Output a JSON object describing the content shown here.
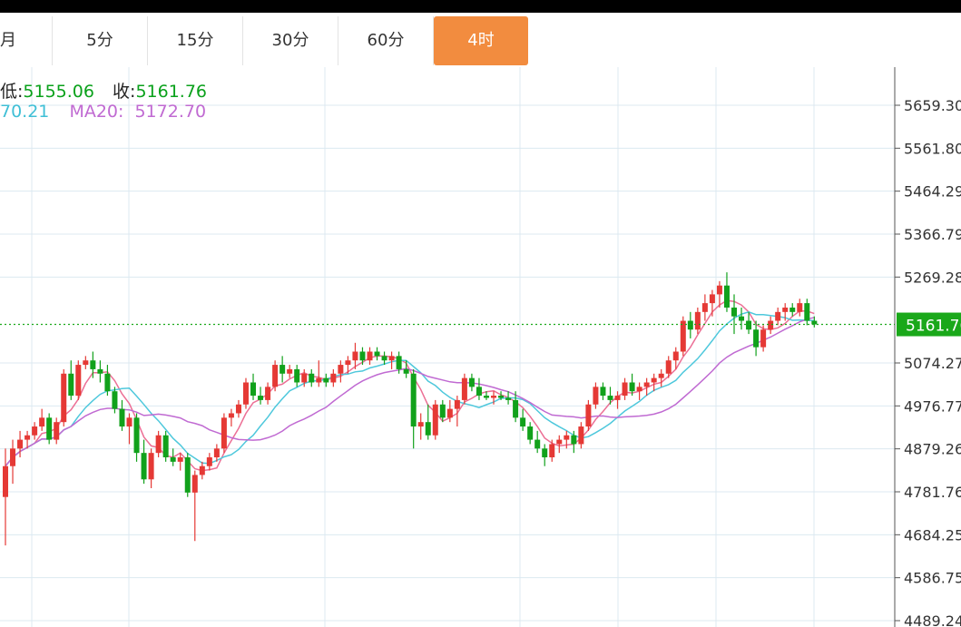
{
  "tabs": [
    {
      "label": "月"
    },
    {
      "label": "5分"
    },
    {
      "label": "15分"
    },
    {
      "label": "30分"
    },
    {
      "label": "60分"
    },
    {
      "label": "4时"
    }
  ],
  "active_tab": "4时",
  "info": {
    "low_label": "低:",
    "low_value": "5155.06",
    "close_label": "收:",
    "close_value": "5161.76",
    "ma10_value": "70.21",
    "ma20_label": "MA20:",
    "ma20_value": "5172.70"
  },
  "colors": {
    "up": "#e53935",
    "down": "#11a11b",
    "ma10": "#ec6f95",
    "ma_cyan": "#4ec8dc",
    "ma20": "#c06ad2",
    "price_line": "#1aa81a",
    "grid": "#dce9f1",
    "accent": "#f28c3f"
  },
  "chart_data": {
    "type": "candlestick",
    "y_ticks": [
      "5659.30",
      "5561.80",
      "5464.29",
      "5366.79",
      "5269.28",
      "5074.27",
      "4976.77",
      "4879.26",
      "4781.76",
      "4684.25",
      "4586.75",
      "4489.24"
    ],
    "ylim": [
      4440,
      5740
    ],
    "last_price": "5161.76",
    "candles": [
      [
        4770,
        4880,
        4660,
        4840
      ],
      [
        4840,
        4900,
        4800,
        4880
      ],
      [
        4880,
        4920,
        4860,
        4900
      ],
      [
        4900,
        4920,
        4880,
        4910
      ],
      [
        4910,
        4940,
        4900,
        4930
      ],
      [
        4930,
        4970,
        4920,
        4950
      ],
      [
        4950,
        4960,
        4890,
        4900
      ],
      [
        4900,
        4950,
        4890,
        4940
      ],
      [
        4940,
        5060,
        4930,
        5050
      ],
      [
        5050,
        5080,
        4990,
        5000
      ],
      [
        5000,
        5080,
        4990,
        5070
      ],
      [
        5070,
        5090,
        5060,
        5080
      ],
      [
        5080,
        5100,
        5040,
        5060
      ],
      [
        5060,
        5080,
        5030,
        5050
      ],
      [
        5050,
        5070,
        5000,
        5010
      ],
      [
        5010,
        5020,
        4960,
        4970
      ],
      [
        4970,
        4990,
        4920,
        4930
      ],
      [
        4930,
        4960,
        4890,
        4950
      ],
      [
        4950,
        4960,
        4850,
        4870
      ],
      [
        4870,
        4900,
        4800,
        4810
      ],
      [
        4810,
        4880,
        4790,
        4870
      ],
      [
        4870,
        4920,
        4860,
        4910
      ],
      [
        4910,
        4920,
        4850,
        4860
      ],
      [
        4860,
        4880,
        4840,
        4850
      ],
      [
        4850,
        4870,
        4830,
        4860
      ],
      [
        4860,
        4870,
        4770,
        4780
      ],
      [
        4780,
        4830,
        4670,
        4820
      ],
      [
        4820,
        4850,
        4810,
        4840
      ],
      [
        4840,
        4870,
        4830,
        4860
      ],
      [
        4860,
        4890,
        4850,
        4880
      ],
      [
        4880,
        4960,
        4870,
        4950
      ],
      [
        4950,
        4970,
        4930,
        4960
      ],
      [
        4960,
        4990,
        4950,
        4980
      ],
      [
        4980,
        5040,
        4970,
        5030
      ],
      [
        5030,
        5050,
        4990,
        5000
      ],
      [
        5000,
        5020,
        4980,
        4990
      ],
      [
        4990,
        5030,
        4980,
        5020
      ],
      [
        5020,
        5080,
        5010,
        5070
      ],
      [
        5070,
        5090,
        5030,
        5050
      ],
      [
        5050,
        5070,
        5040,
        5060
      ],
      [
        5060,
        5070,
        5020,
        5030
      ],
      [
        5030,
        5060,
        5020,
        5050
      ],
      [
        5050,
        5060,
        5020,
        5030
      ],
      [
        5030,
        5080,
        5020,
        5040
      ],
      [
        5040,
        5050,
        5020,
        5030
      ],
      [
        5030,
        5060,
        5020,
        5050
      ],
      [
        5050,
        5080,
        5030,
        5070
      ],
      [
        5070,
        5090,
        5050,
        5080
      ],
      [
        5080,
        5120,
        5060,
        5100
      ],
      [
        5100,
        5110,
        5070,
        5080
      ],
      [
        5080,
        5110,
        5070,
        5100
      ],
      [
        5100,
        5110,
        5080,
        5090
      ],
      [
        5090,
        5100,
        5070,
        5080
      ],
      [
        5080,
        5100,
        5060,
        5090
      ],
      [
        5090,
        5100,
        5050,
        5060
      ],
      [
        5060,
        5080,
        5040,
        5050
      ],
      [
        5050,
        5060,
        4880,
        4930
      ],
      [
        4930,
        4960,
        4900,
        4940
      ],
      [
        4940,
        4980,
        4900,
        4910
      ],
      [
        4910,
        4990,
        4900,
        4980
      ],
      [
        4980,
        4990,
        4940,
        4950
      ],
      [
        4950,
        4990,
        4940,
        4970
      ],
      [
        4970,
        5000,
        4930,
        4990
      ],
      [
        4990,
        5050,
        4980,
        5040
      ],
      [
        5040,
        5050,
        5010,
        5020
      ],
      [
        5020,
        5040,
        4990,
        5000
      ],
      [
        5000,
        5010,
        4990,
        4995
      ],
      [
        4995,
        5010,
        4980,
        5000
      ],
      [
        5000,
        5010,
        4990,
        4995
      ],
      [
        4995,
        5010,
        4980,
        4990
      ],
      [
        4990,
        5010,
        4940,
        4950
      ],
      [
        4950,
        4970,
        4920,
        4930
      ],
      [
        4930,
        4940,
        4890,
        4900
      ],
      [
        4900,
        4920,
        4870,
        4880
      ],
      [
        4880,
        4890,
        4840,
        4860
      ],
      [
        4860,
        4900,
        4850,
        4890
      ],
      [
        4890,
        4910,
        4870,
        4900
      ],
      [
        4900,
        4920,
        4880,
        4910
      ],
      [
        4910,
        4920,
        4870,
        4890
      ],
      [
        4890,
        4940,
        4880,
        4930
      ],
      [
        4930,
        4990,
        4920,
        4980
      ],
      [
        4980,
        5030,
        4970,
        5020
      ],
      [
        5020,
        5030,
        4990,
        5000
      ],
      [
        5000,
        5020,
        4980,
        4990
      ],
      [
        4990,
        5010,
        4970,
        5000
      ],
      [
        5000,
        5040,
        4990,
        5030
      ],
      [
        5030,
        5050,
        5000,
        5010
      ],
      [
        5010,
        5030,
        4990,
        5020
      ],
      [
        5020,
        5040,
        5000,
        5030
      ],
      [
        5030,
        5050,
        5010,
        5040
      ],
      [
        5040,
        5060,
        5020,
        5050
      ],
      [
        5050,
        5090,
        5040,
        5080
      ],
      [
        5080,
        5110,
        5060,
        5100
      ],
      [
        5100,
        5180,
        5090,
        5170
      ],
      [
        5170,
        5190,
        5130,
        5150
      ],
      [
        5150,
        5200,
        5140,
        5190
      ],
      [
        5190,
        5230,
        5170,
        5210
      ],
      [
        5210,
        5240,
        5180,
        5230
      ],
      [
        5230,
        5260,
        5200,
        5250
      ],
      [
        5250,
        5280,
        5190,
        5200
      ],
      [
        5200,
        5230,
        5140,
        5180
      ],
      [
        5180,
        5200,
        5150,
        5170
      ],
      [
        5170,
        5190,
        5140,
        5150
      ],
      [
        5150,
        5170,
        5090,
        5110
      ],
      [
        5110,
        5160,
        5100,
        5150
      ],
      [
        5150,
        5180,
        5140,
        5170
      ],
      [
        5170,
        5200,
        5160,
        5190
      ],
      [
        5190,
        5210,
        5170,
        5200
      ],
      [
        5200,
        5210,
        5180,
        5190
      ],
      [
        5190,
        5220,
        5180,
        5210
      ],
      [
        5210,
        5220,
        5160,
        5170
      ],
      [
        5170,
        5180,
        5155,
        5161.76
      ]
    ]
  }
}
